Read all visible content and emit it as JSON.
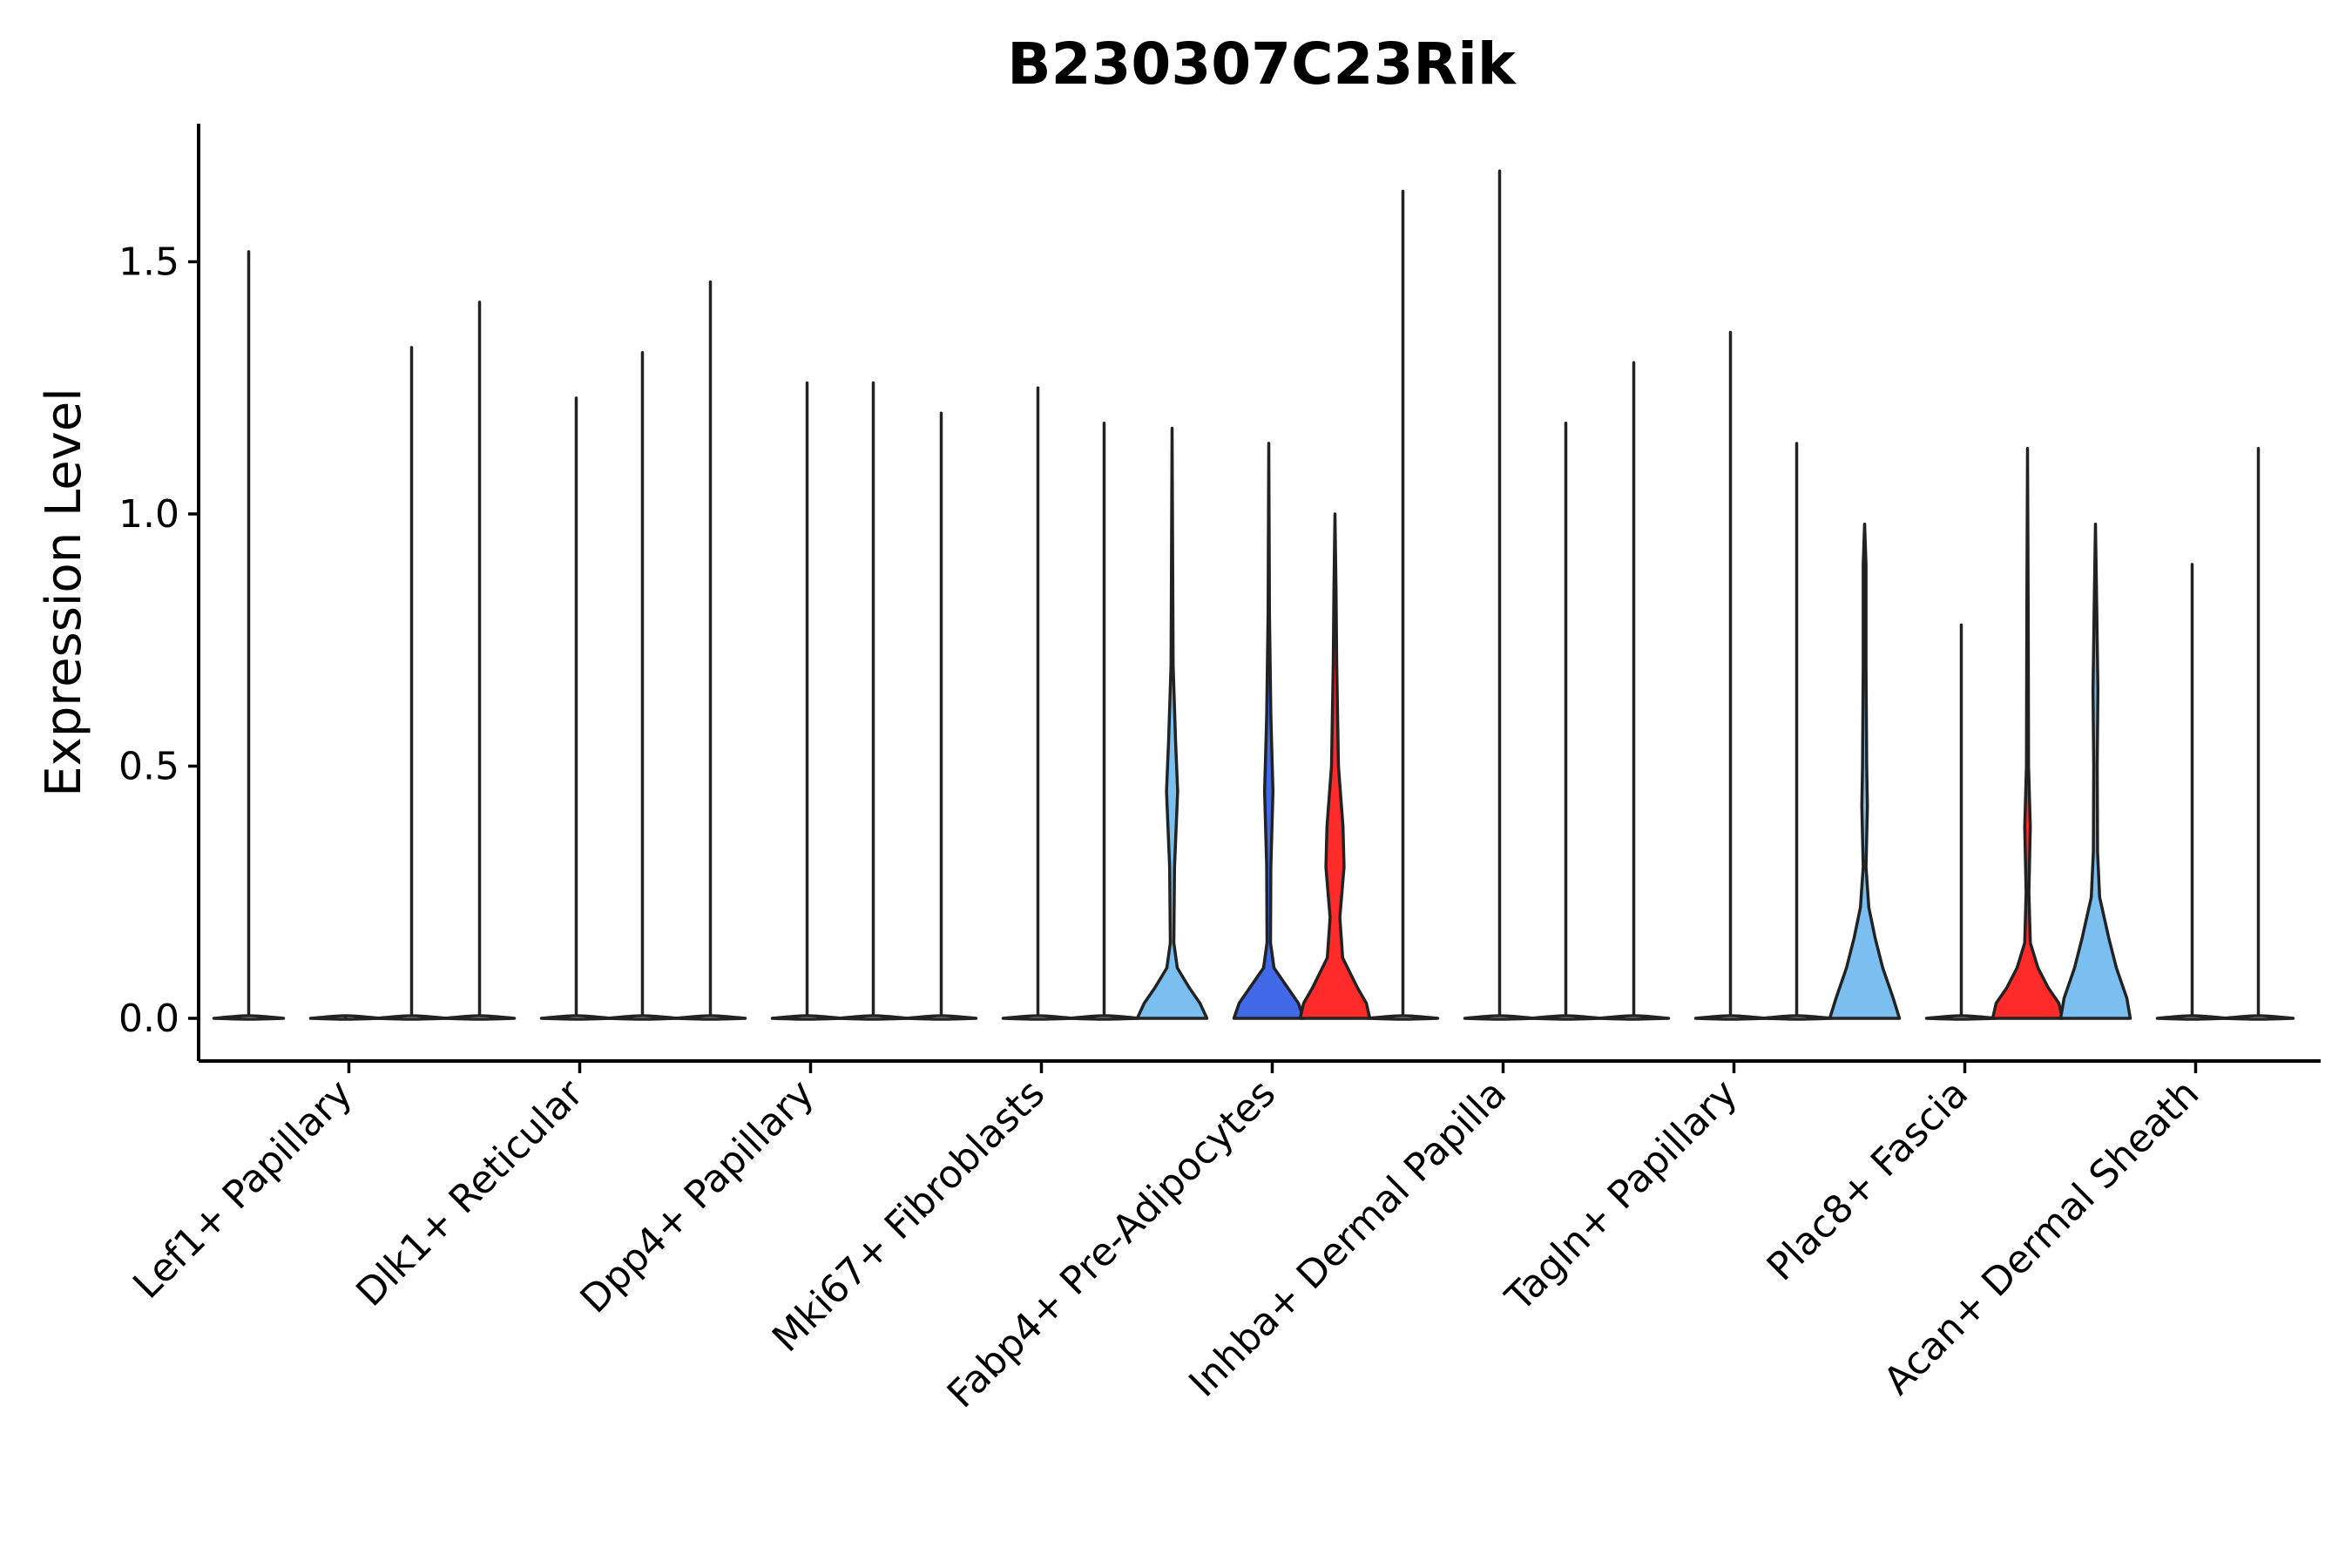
{
  "chart_data": {
    "type": "violin",
    "title": "B230307C23Rik",
    "xlabel": "",
    "ylabel": "Expression Level",
    "ylim": [
      -0.08,
      1.77
    ],
    "yticks": [
      0.0,
      0.5,
      1.0,
      1.5
    ],
    "ytick_labels": [
      "0.0",
      "0.5",
      "1.0",
      "1.5"
    ],
    "grid": false,
    "legend": "none",
    "colors": {
      "light_blue": "#7bbff0",
      "blue": "#4169e8",
      "red": "#ff2a2a",
      "none": "none"
    },
    "categories": [
      "Lef1+ Papillary",
      "Dlk1+ Reticular",
      "Dpp4+ Papillary",
      "Mki67+ Fibroblasts",
      "Fabp4+ Pre-Adipocytes",
      "Inhba+ Dermal Papilla",
      "Tagln+ Papillary",
      "Plac8+ Fascia",
      "Acan+ Dermal Sheath"
    ],
    "groups": [
      {
        "category": "Lef1+ Papillary",
        "violins": [
          {
            "max": 1.52,
            "fill": "none",
            "shape": []
          },
          {
            "max": 0.0,
            "fill": "none",
            "shape": []
          },
          {
            "max": 1.33,
            "fill": "none",
            "shape": []
          }
        ]
      },
      {
        "category": "Dlk1+ Reticular",
        "violins": [
          {
            "max": 1.42,
            "fill": "none",
            "shape": []
          },
          {
            "max": 1.23,
            "fill": "none",
            "shape": []
          },
          {
            "max": 1.32,
            "fill": "none",
            "shape": []
          }
        ]
      },
      {
        "category": "Dpp4+ Papillary",
        "violins": [
          {
            "max": 1.46,
            "fill": "none",
            "shape": []
          },
          {
            "max": 1.26,
            "fill": "none",
            "shape": []
          },
          {
            "max": 1.26,
            "fill": "none",
            "shape": []
          }
        ]
      },
      {
        "category": "Mki67+ Fibroblasts",
        "violins": [
          {
            "max": 1.2,
            "fill": "none",
            "shape": []
          },
          {
            "max": 1.25,
            "fill": "none",
            "shape": []
          },
          {
            "max": 1.18,
            "fill": "none",
            "shape": []
          }
        ]
      },
      {
        "category": "Fabp4+ Pre-Adipocytes",
        "violins": [
          {
            "max": 1.17,
            "fill": "light_blue",
            "shape": [
              [
                0.0,
                1.0
              ],
              [
                0.03,
                0.8
              ],
              [
                0.06,
                0.5
              ],
              [
                0.1,
                0.15
              ],
              [
                0.15,
                0.05
              ],
              [
                0.3,
                0.07
              ],
              [
                0.45,
                0.16
              ],
              [
                0.55,
                0.1
              ],
              [
                0.7,
                0.03
              ],
              [
                1.17,
                0.0
              ]
            ]
          },
          {
            "max": 1.14,
            "fill": "blue",
            "shape": [
              [
                0.0,
                1.0
              ],
              [
                0.03,
                0.85
              ],
              [
                0.06,
                0.55
              ],
              [
                0.1,
                0.15
              ],
              [
                0.15,
                0.05
              ],
              [
                0.3,
                0.06
              ],
              [
                0.45,
                0.12
              ],
              [
                0.6,
                0.06
              ],
              [
                0.8,
                0.02
              ],
              [
                1.14,
                0.0
              ]
            ]
          },
          {
            "max": 1.0,
            "fill": "red",
            "shape": [
              [
                0.0,
                1.0
              ],
              [
                0.03,
                0.9
              ],
              [
                0.06,
                0.65
              ],
              [
                0.12,
                0.22
              ],
              [
                0.2,
                0.14
              ],
              [
                0.3,
                0.26
              ],
              [
                0.38,
                0.23
              ],
              [
                0.5,
                0.1
              ],
              [
                0.7,
                0.05
              ],
              [
                0.85,
                0.03
              ],
              [
                1.0,
                0.0
              ]
            ]
          }
        ]
      },
      {
        "category": "Inhba+ Dermal Papilla",
        "violins": [
          {
            "max": 1.64,
            "fill": "none",
            "shape": []
          },
          {
            "max": 1.68,
            "fill": "none",
            "shape": []
          },
          {
            "max": 1.18,
            "fill": "none",
            "shape": []
          }
        ]
      },
      {
        "category": "Tagln+ Papillary",
        "violins": [
          {
            "max": 1.3,
            "fill": "none",
            "shape": []
          },
          {
            "max": 1.36,
            "fill": "none",
            "shape": []
          },
          {
            "max": 1.14,
            "fill": "none",
            "shape": []
          }
        ]
      },
      {
        "category": "Plac8+ Fascia",
        "violins": [
          {
            "max": 0.98,
            "fill": "light_blue",
            "shape": [
              [
                0.0,
                1.0
              ],
              [
                0.04,
                0.82
              ],
              [
                0.1,
                0.52
              ],
              [
                0.16,
                0.3
              ],
              [
                0.22,
                0.12
              ],
              [
                0.3,
                0.04
              ],
              [
                0.42,
                0.08
              ],
              [
                0.5,
                0.06
              ],
              [
                0.7,
                0.04
              ],
              [
                0.9,
                0.04
              ],
              [
                0.98,
                0.0
              ]
            ]
          },
          {
            "max": 0.78,
            "fill": "none",
            "shape": []
          },
          {
            "max": 1.13,
            "fill": "red",
            "shape": [
              [
                0.0,
                1.0
              ],
              [
                0.03,
                0.9
              ],
              [
                0.06,
                0.6
              ],
              [
                0.1,
                0.3
              ],
              [
                0.15,
                0.08
              ],
              [
                0.25,
                0.04
              ],
              [
                0.38,
                0.08
              ],
              [
                0.5,
                0.03
              ],
              [
                0.8,
                0.02
              ],
              [
                1.13,
                0.0
              ]
            ]
          }
        ]
      },
      {
        "category": "Acan+ Dermal Sheath",
        "violins": [
          {
            "max": 0.98,
            "fill": "light_blue",
            "shape": [
              [
                0.0,
                1.0
              ],
              [
                0.04,
                0.9
              ],
              [
                0.1,
                0.6
              ],
              [
                0.16,
                0.38
              ],
              [
                0.24,
                0.12
              ],
              [
                0.33,
                0.06
              ],
              [
                0.5,
                0.05
              ],
              [
                0.65,
                0.07
              ],
              [
                0.8,
                0.04
              ],
              [
                0.98,
                0.0
              ]
            ]
          },
          {
            "max": 0.9,
            "fill": "none",
            "shape": []
          },
          {
            "max": 1.13,
            "fill": "none",
            "shape": []
          }
        ]
      }
    ]
  }
}
